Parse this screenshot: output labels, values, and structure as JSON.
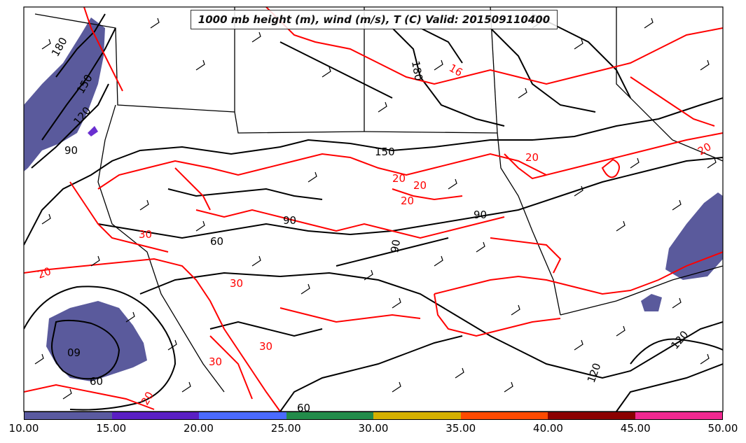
{
  "title": "1000 mb height (m), wind (m/s), T (C) Valid: 201509110400",
  "colors": {
    "height_contour": "#000000",
    "temp_contour": "#ff0000",
    "wind_shade": "#5a5a9c",
    "border": "#000000"
  },
  "colorbar": {
    "ticks": [
      "10.00",
      "15.00",
      "20.00",
      "25.00",
      "30.00",
      "35.00",
      "40.00",
      "45.00",
      "50.00"
    ],
    "colors": [
      "#5a5aa0",
      "#5a1fc4",
      "#4a6aff",
      "#228b4a",
      "#d4b000",
      "#ff4a00",
      "#8b0000",
      "#f02890"
    ]
  },
  "height_labels": [
    "180",
    "150",
    "120",
    "90",
    "180",
    "150",
    "90",
    "90",
    "60",
    "90",
    "60",
    "60",
    "120",
    "120",
    "60"
  ],
  "temp_labels": [
    "16",
    "20",
    "20",
    "20",
    "20",
    "20",
    "20",
    "30",
    "30",
    "30",
    "20",
    "30"
  ]
}
